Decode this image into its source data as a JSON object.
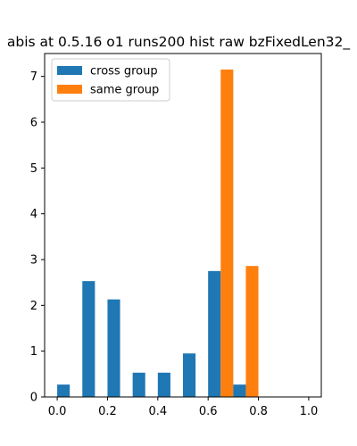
{
  "chart_data": {
    "type": "bar",
    "title": "abis at 0.5.16 o1 runs200 hist raw bzFixedLen32_",
    "xlabel": "",
    "ylabel": "",
    "xlim": [
      -0.05,
      1.05
    ],
    "ylim": [
      0,
      7.5
    ],
    "xticks": [
      0.0,
      0.2,
      0.4,
      0.6,
      0.8,
      1.0
    ],
    "xtick_labels": [
      "0.0",
      "0.2",
      "0.4",
      "0.6",
      "0.8",
      "1.0"
    ],
    "yticks": [
      0,
      1,
      2,
      3,
      4,
      5,
      6,
      7
    ],
    "ytick_labels": [
      "0",
      "1",
      "2",
      "3",
      "4",
      "5",
      "6",
      "7"
    ],
    "bin_edges": [
      0.0,
      0.1,
      0.2,
      0.3,
      0.4,
      0.5,
      0.6,
      0.7,
      0.8,
      0.9,
      1.0
    ],
    "grid": false,
    "legend_position": "top-left",
    "series": [
      {
        "name": "cross group",
        "color": "#1f77b4",
        "values": [
          0.27,
          2.53,
          2.13,
          0.53,
          0.53,
          0.95,
          2.75,
          0.27,
          0,
          0
        ]
      },
      {
        "name": "same group",
        "color": "#ff7f0e",
        "values": [
          0,
          0,
          0,
          0,
          0,
          0,
          7.15,
          2.86,
          0,
          0
        ]
      }
    ]
  }
}
